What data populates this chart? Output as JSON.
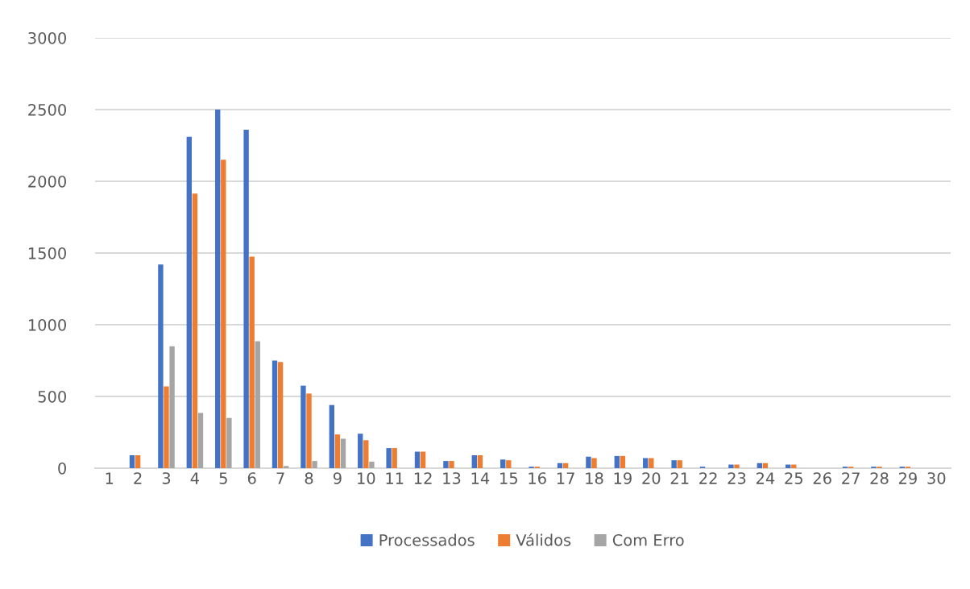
{
  "chart_data": {
    "type": "bar",
    "categories": [
      "1",
      "2",
      "3",
      "4",
      "5",
      "6",
      "7",
      "8",
      "9",
      "10",
      "11",
      "12",
      "13",
      "14",
      "15",
      "16",
      "17",
      "18",
      "19",
      "20",
      "21",
      "22",
      "23",
      "24",
      "25",
      "26",
      "27",
      "28",
      "29",
      "30"
    ],
    "series": [
      {
        "name": "Processados",
        "color": "#4472c4",
        "values": [
          0,
          90,
          1420,
          2310,
          2500,
          2360,
          750,
          575,
          440,
          240,
          140,
          115,
          50,
          90,
          60,
          10,
          35,
          80,
          85,
          70,
          55,
          10,
          25,
          35,
          25,
          0,
          10,
          10,
          10,
          0
        ]
      },
      {
        "name": "Válidos",
        "color": "#ed7d31",
        "values": [
          0,
          90,
          570,
          1915,
          2150,
          1475,
          740,
          520,
          235,
          195,
          140,
          115,
          50,
          90,
          55,
          10,
          35,
          70,
          85,
          70,
          55,
          0,
          25,
          35,
          25,
          0,
          10,
          10,
          10,
          0
        ]
      },
      {
        "name": "Com Erro",
        "color": "#a5a5a5",
        "values": [
          0,
          0,
          850,
          385,
          350,
          885,
          15,
          50,
          205,
          45,
          0,
          0,
          0,
          0,
          0,
          0,
          0,
          0,
          0,
          0,
          0,
          0,
          0,
          0,
          0,
          0,
          0,
          0,
          0,
          0
        ]
      }
    ],
    "ylim": [
      0,
      3000
    ],
    "yticks": [
      0,
      500,
      1000,
      1500,
      2000,
      2500,
      3000
    ],
    "grid": "y",
    "legend": "bottom"
  }
}
